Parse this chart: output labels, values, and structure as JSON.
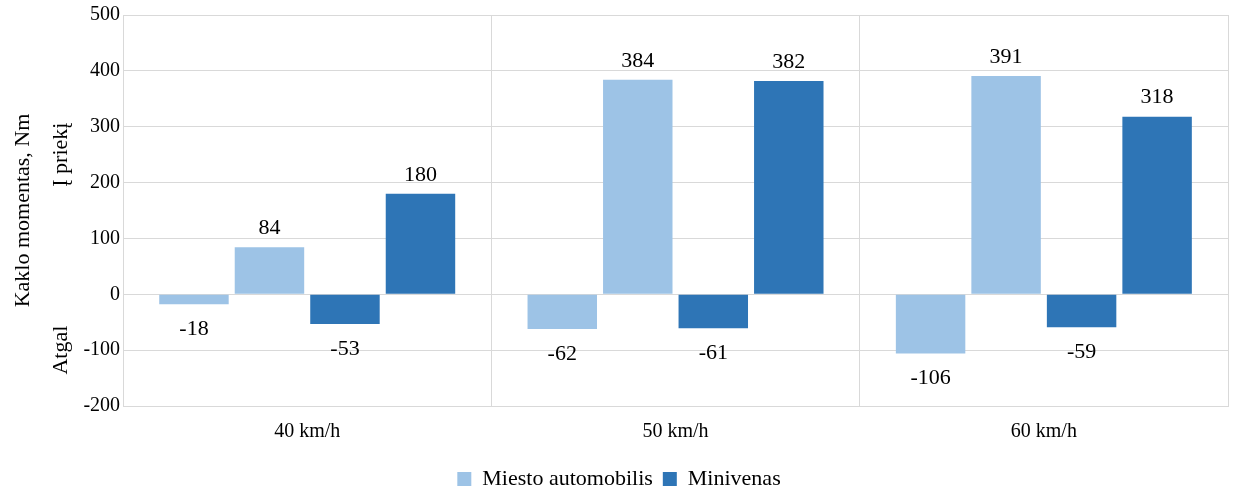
{
  "chart_data": {
    "type": "bar",
    "ylabel": "Kaklo momentas, Nm",
    "categories": [
      "40 km/h",
      "50 km/h",
      "60 km/h"
    ],
    "series": [
      {
        "name": "Miesto automobilis",
        "color": "#9dc3e6",
        "values": [
          -18,
          -62,
          -106
        ]
      },
      {
        "color": "#9dc3e6",
        "values": [
          84,
          384,
          391
        ]
      },
      {
        "name": "Minivenas",
        "color": "#2e75b6",
        "values": [
          -53,
          -61,
          -59
        ]
      },
      {
        "color": "#2e75b6",
        "values": [
          180,
          382,
          318
        ]
      }
    ],
    "ylim": [
      -200,
      500
    ],
    "yticks": [
      -200,
      -100,
      0,
      100,
      200,
      300,
      400,
      500
    ],
    "grid": true,
    "legend": "bottom",
    "data_labels": true,
    "annotations": [
      "Į priekį",
      "Atgal"
    ]
  }
}
